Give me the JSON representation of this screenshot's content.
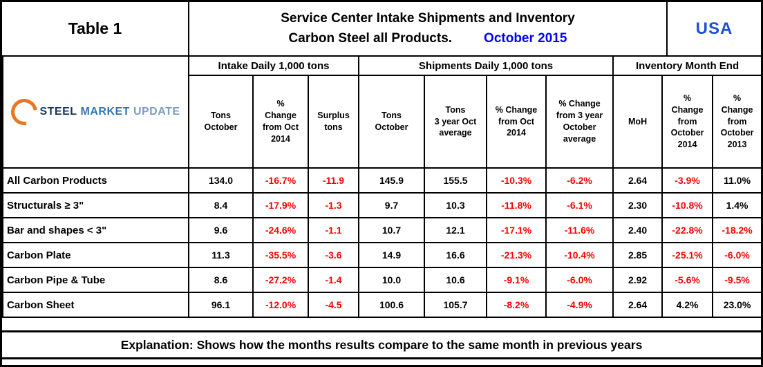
{
  "header": {
    "table_label": "Table 1",
    "title_line1": "Service Center Intake Shipments and Inventory",
    "title_line2": "Carbon Steel all Products.",
    "title_date": "October 2015",
    "country": "USA"
  },
  "logo": {
    "steel": "STEEL",
    "market": "MARKET",
    "update": "UPDATE"
  },
  "colors": {
    "negative": "#FF0000",
    "date_blue": "#0000FF",
    "usa_blue": "#1F4FD8",
    "logo_ring": "#E87722",
    "logo_steel": "#17365D",
    "logo_market": "#2E74B5",
    "logo_update": "#7C9CC4"
  },
  "table": {
    "groups": [
      {
        "label": "Intake Daily 1,000 tons"
      },
      {
        "label": "Shipments Daily 1,000 tons"
      },
      {
        "label": "Inventory Month End"
      }
    ],
    "columns": [
      "Tons\nOctober",
      "%\nChange\nfrom Oct\n2014",
      "Surplus\ntons",
      "Tons\nOctober",
      "Tons\n3 year Oct\naverage",
      "% Change\nfrom Oct\n2014",
      "% Change\nfrom 3 year\nOctober\naverage",
      "MoH",
      "%\nChange\nfrom\nOctober\n2014",
      "%\nChange\nfrom\nOctober\n2013"
    ],
    "rows": [
      {
        "label": "All Carbon Products",
        "values": [
          "134.0",
          "-16.7%",
          "-11.9",
          "145.9",
          "155.5",
          "-10.3%",
          "-6.2%",
          "2.64",
          "-3.9%",
          "11.0%"
        ]
      },
      {
        "label": "Structurals ≥ 3\"",
        "values": [
          "8.4",
          "-17.9%",
          "-1.3",
          "9.7",
          "10.3",
          "-11.8%",
          "-6.1%",
          "2.30",
          "-10.8%",
          "1.4%"
        ]
      },
      {
        "label": "Bar and shapes < 3\"",
        "values": [
          "9.6",
          "-24.6%",
          "-1.1",
          "10.7",
          "12.1",
          "-17.1%",
          "-11.6%",
          "2.40",
          "-22.8%",
          "-18.2%"
        ]
      },
      {
        "label": "Carbon Plate",
        "values": [
          "11.3",
          "-35.5%",
          "-3.6",
          "14.9",
          "16.6",
          "-21.3%",
          "-10.4%",
          "2.85",
          "-25.1%",
          "-6.0%"
        ]
      },
      {
        "label": "Carbon Pipe & Tube",
        "values": [
          "8.6",
          "-27.2%",
          "-1.4",
          "10.0",
          "10.6",
          "-9.1%",
          "-6.0%",
          "2.92",
          "-5.6%",
          "-9.5%"
        ]
      },
      {
        "label": "Carbon Sheet",
        "values": [
          "96.1",
          "-12.0%",
          "-4.5",
          "100.6",
          "105.7",
          "-8.2%",
          "-4.9%",
          "2.64",
          "4.2%",
          "23.0%"
        ]
      }
    ]
  },
  "explanation": "Explanation: Shows how the months results compare to the same month in previous years"
}
